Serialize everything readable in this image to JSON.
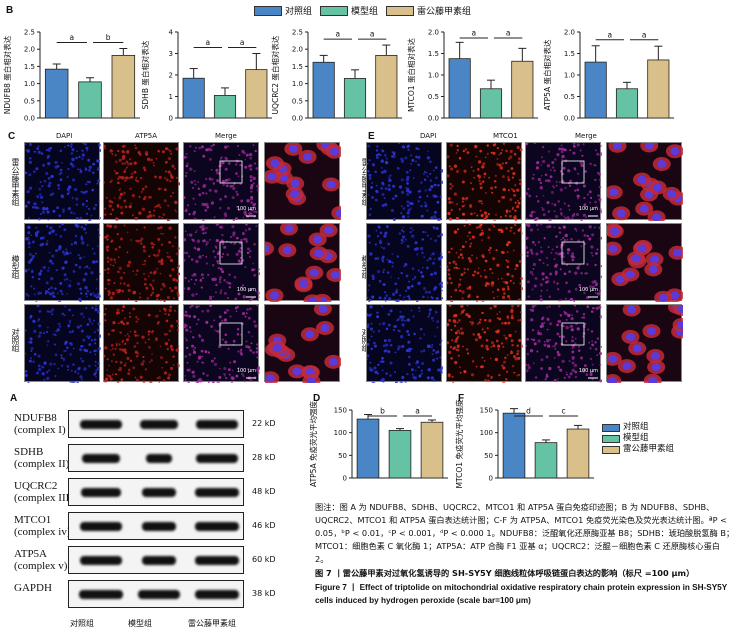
{
  "panel_letters": {
    "a": "A",
    "b": "B",
    "c": "C",
    "d": "D",
    "e": "E",
    "f": "F"
  },
  "legend": [
    {
      "name": "对照组",
      "color": "#4a86c5"
    },
    {
      "name": "模型组",
      "color": "#66c2a5"
    },
    {
      "name": "雷公藤甲素组",
      "color": "#d9c08a"
    }
  ],
  "colors": {
    "control": "#4a86c5",
    "model": "#66c2a5",
    "triptolide": "#d9c08a"
  },
  "chart_data": [
    {
      "type": "bar",
      "panel": "B",
      "ylabel": "NDUFB8 蛋白相对表达",
      "ylim": [
        0,
        2.5
      ],
      "yticks": [
        "0.0",
        "0.5",
        "1.0",
        "1.5",
        "2.0",
        "2.5"
      ],
      "series": [
        {
          "values": [
            1.42,
            1.05,
            1.82
          ],
          "errors": [
            0.15,
            0.12,
            0.2
          ]
        }
      ],
      "sig": [
        "a",
        "b"
      ]
    },
    {
      "type": "bar",
      "panel": "B",
      "ylabel": "SDHB 蛋白相对表达",
      "ylim": [
        0,
        4
      ],
      "yticks": [
        "0",
        "1",
        "2",
        "3",
        "4"
      ],
      "series": [
        {
          "values": [
            1.85,
            1.05,
            2.25
          ],
          "errors": [
            0.45,
            0.35,
            0.75
          ]
        }
      ],
      "sig": [
        "a",
        "a"
      ]
    },
    {
      "type": "bar",
      "panel": "B",
      "ylabel": "UQCRC2 蛋白相对表达",
      "ylim": [
        0,
        2.5
      ],
      "yticks": [
        "0.0",
        "0.5",
        "1.0",
        "1.5",
        "2.0",
        "2.5"
      ],
      "series": [
        {
          "values": [
            1.62,
            1.15,
            1.82
          ],
          "errors": [
            0.2,
            0.25,
            0.3
          ]
        }
      ],
      "sig": [
        "a",
        "a"
      ]
    },
    {
      "type": "bar",
      "panel": "B",
      "ylabel": "MTCO1 蛋白相对表达",
      "ylim": [
        0,
        2.0
      ],
      "yticks": [
        "0.0",
        "0.5",
        "1.0",
        "1.5",
        "2.0"
      ],
      "series": [
        {
          "values": [
            1.38,
            0.68,
            1.32
          ],
          "errors": [
            0.38,
            0.2,
            0.3
          ]
        }
      ],
      "sig": [
        "a",
        "a"
      ]
    },
    {
      "type": "bar",
      "panel": "B",
      "ylabel": "ATP5A 蛋白相对表达",
      "ylim": [
        0,
        2.0
      ],
      "yticks": [
        "0.0",
        "0.5",
        "1.0",
        "1.5",
        "2.0"
      ],
      "series": [
        {
          "values": [
            1.3,
            0.68,
            1.35
          ],
          "errors": [
            0.38,
            0.15,
            0.32
          ]
        }
      ],
      "sig": [
        "a",
        "a"
      ]
    },
    {
      "type": "bar",
      "panel": "D",
      "ylabel": "ATP5A 免疫荧光平均强度",
      "ylim": [
        0,
        150
      ],
      "yticks": [
        "0",
        "50",
        "100",
        "150"
      ],
      "series": [
        {
          "values": [
            130,
            105,
            123
          ],
          "errors": [
            10,
            4,
            5
          ]
        }
      ],
      "sig": [
        "b",
        "a"
      ]
    },
    {
      "type": "bar",
      "panel": "F",
      "ylabel": "MTCO1 免疫荧光平均强度",
      "ylim": [
        0,
        150
      ],
      "yticks": [
        "0",
        "50",
        "100",
        "150"
      ],
      "series": [
        {
          "values": [
            143,
            78,
            108
          ],
          "errors": [
            10,
            6,
            8
          ]
        }
      ],
      "sig": [
        "d",
        "c"
      ]
    }
  ],
  "if_c": {
    "cols": [
      "DAPI",
      "ATP5A",
      "Merge"
    ],
    "rows": [
      "雷公藤甲素组",
      "模型组",
      "对照组"
    ],
    "scale": "100 μm"
  },
  "if_e": {
    "cols": [
      "DAPI",
      "MTCO1",
      "Merge"
    ],
    "rows": [
      "雷公藤甲素组",
      "模型组",
      "对照组"
    ],
    "scale": "100 μm"
  },
  "western": {
    "rows": [
      {
        "l1": "NDUFB8",
        "l2": "(complex I)",
        "kd": "22 kD"
      },
      {
        "l1": "SDHB",
        "l2": "(complex II)",
        "kd": "28 kD"
      },
      {
        "l1": "UQCRC2",
        "l2": "(complex III)",
        "kd": "48 kD"
      },
      {
        "l1": "MTCO1",
        "l2": "(complex iv)",
        "kd": "46 kD"
      },
      {
        "l1": "ATP5A",
        "l2": "(complex v)",
        "kd": "60 kD"
      },
      {
        "l1": "GAPDH",
        "l2": "",
        "kd": "38 kD"
      }
    ],
    "groups": [
      "对照组",
      "模型组",
      "雷公藤甲素组"
    ]
  },
  "caption": {
    "p1": "图注：图 A 为 NDUFB8、SDHB、UQCRC2、MTCO1 和 ATP5A 蛋白免疫印迹图；B 为 NDUFB8、SDHB、UQCRC2、MTCO1 和 ATP5A 蛋白表达统计图；C-F 为 ATP5A、MTCO1 免疫荧光染色及荧光表达统计图。ªP < 0.05，ᵇP < 0.01，ᶜP < 0.001，ᵈP < 0.000 1。NDUFB8：泛醌氧化还原酶亚基 B8；SDHB：琥珀酸脱氢酶 B；MTCO1：细胞色素 C 氧化酶 1；ATP5A：ATP 合酶 F1 亚基 α；UQCRC2：泛醌－细胞色素 C 还原酶核心蛋白 2。",
    "t_cn": "图 7 丨雷公藤甲素对过氧化氢诱导的 SH-SY5Y 细胞线粒体呼吸链蛋白表达的影响（标尺 =100 μm）",
    "t_en": "Figure 7 丨 Effect of triptolide on mitochondrial oxidative respiratory chain protein expression in SH-SY5Y cells induced by hydrogen peroxide (scale bar=100 μm)"
  }
}
